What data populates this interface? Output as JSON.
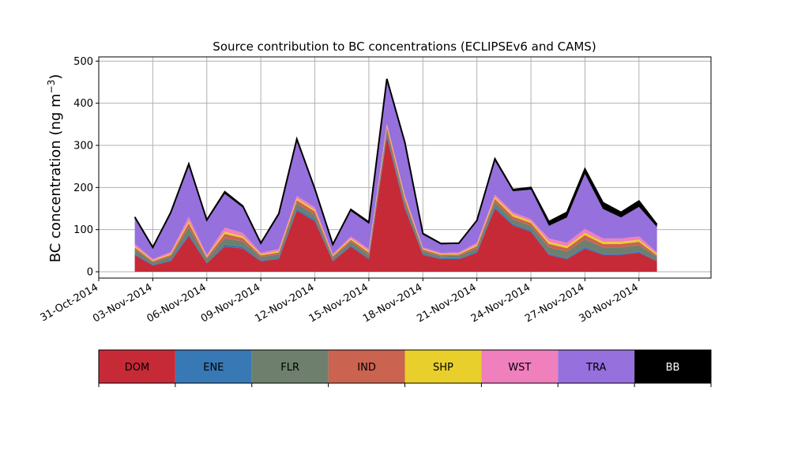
{
  "chart_data": {
    "type": "area",
    "stacked": true,
    "title": "Source contribution to BC concentrations (ECLIPSEv6 and CAMS)",
    "xlabel": "",
    "ylabel_main": "BC concentration (ng m",
    "ylabel_sup": "−3",
    "ylabel_close": ")",
    "xlim": [
      "2014-10-31",
      "2014-12-04"
    ],
    "ylim": [
      -15,
      510
    ],
    "grid": true,
    "x_ticks": [
      {
        "date": "2014-10-31",
        "label": "31-Oct-2014"
      },
      {
        "date": "2014-11-03",
        "label": "03-Nov-2014"
      },
      {
        "date": "2014-11-06",
        "label": "06-Nov-2014"
      },
      {
        "date": "2014-11-09",
        "label": "09-Nov-2014"
      },
      {
        "date": "2014-11-12",
        "label": "12-Nov-2014"
      },
      {
        "date": "2014-11-15",
        "label": "15-Nov-2014"
      },
      {
        "date": "2014-11-18",
        "label": "18-Nov-2014"
      },
      {
        "date": "2014-11-21",
        "label": "21-Nov-2014"
      },
      {
        "date": "2014-11-24",
        "label": "24-Nov-2014"
      },
      {
        "date": "2014-11-27",
        "label": "27-Nov-2014"
      },
      {
        "date": "2014-11-30",
        "label": "30-Nov-2014"
      }
    ],
    "y_ticks": [
      0,
      100,
      200,
      300,
      400,
      500
    ],
    "x": [
      "2014-11-02",
      "2014-11-03",
      "2014-11-04",
      "2014-11-05",
      "2014-11-06",
      "2014-11-07",
      "2014-11-08",
      "2014-11-09",
      "2014-11-10",
      "2014-11-11",
      "2014-11-12",
      "2014-11-13",
      "2014-11-14",
      "2014-11-15",
      "2014-11-16",
      "2014-11-17",
      "2014-11-18",
      "2014-11-19",
      "2014-11-20",
      "2014-11-21",
      "2014-11-22",
      "2014-11-23",
      "2014-11-24",
      "2014-11-25",
      "2014-11-26",
      "2014-11-27",
      "2014-11-28",
      "2014-11-29",
      "2014-11-30",
      "2014-12-01"
    ],
    "series": [
      {
        "name": "DOM",
        "color": "#c62a37",
        "values": [
          40,
          15,
          25,
          85,
          20,
          60,
          55,
          25,
          30,
          145,
          120,
          25,
          60,
          30,
          320,
          150,
          40,
          30,
          30,
          45,
          150,
          110,
          95,
          40,
          30,
          55,
          40,
          40,
          45,
          25
        ]
      },
      {
        "name": "ENE",
        "color": "#3878b4",
        "values": [
          3,
          2,
          3,
          5,
          2,
          5,
          5,
          2,
          3,
          5,
          5,
          2,
          3,
          3,
          5,
          5,
          3,
          2,
          2,
          3,
          5,
          4,
          4,
          3,
          3,
          4,
          3,
          3,
          3,
          2
        ]
      },
      {
        "name": "FLR",
        "color": "#6e7f6e",
        "values": [
          10,
          5,
          8,
          15,
          8,
          15,
          12,
          8,
          8,
          12,
          10,
          6,
          8,
          8,
          10,
          10,
          6,
          5,
          6,
          8,
          10,
          10,
          10,
          15,
          15,
          18,
          15,
          15,
          15,
          8
        ]
      },
      {
        "name": "IND",
        "color": "#ca6350",
        "values": [
          5,
          3,
          4,
          10,
          4,
          10,
          8,
          4,
          5,
          8,
          8,
          4,
          5,
          5,
          8,
          8,
          4,
          3,
          3,
          5,
          8,
          7,
          7,
          8,
          8,
          10,
          8,
          8,
          8,
          4
        ]
      },
      {
        "name": "SHP",
        "color": "#e8cf2b",
        "values": [
          3,
          2,
          3,
          5,
          2,
          5,
          4,
          2,
          3,
          4,
          4,
          2,
          3,
          3,
          4,
          4,
          2,
          2,
          2,
          3,
          4,
          5,
          4,
          5,
          5,
          5,
          5,
          5,
          5,
          3
        ]
      },
      {
        "name": "WST",
        "color": "#f07fbe",
        "values": [
          5,
          3,
          4,
          10,
          4,
          10,
          8,
          4,
          5,
          6,
          6,
          3,
          5,
          5,
          5,
          5,
          3,
          3,
          3,
          5,
          6,
          5,
          5,
          8,
          8,
          10,
          8,
          8,
          8,
          4
        ]
      },
      {
        "name": "TRA",
        "color": "#9670dc",
        "values": [
          60,
          25,
          90,
          120,
          80,
          80,
          60,
          20,
          80,
          130,
          40,
          20,
          60,
          60,
          100,
          120,
          30,
          20,
          20,
          50,
          80,
          50,
          70,
          30,
          60,
          130,
          70,
          50,
          70,
          60
        ]
      },
      {
        "name": "BB",
        "color": "#000000",
        "values": [
          4,
          3,
          4,
          6,
          3,
          5,
          4,
          3,
          4,
          5,
          4,
          3,
          4,
          4,
          6,
          5,
          3,
          2,
          2,
          3,
          5,
          4,
          5,
          10,
          12,
          12,
          15,
          12,
          14,
          6
        ]
      }
    ]
  }
}
